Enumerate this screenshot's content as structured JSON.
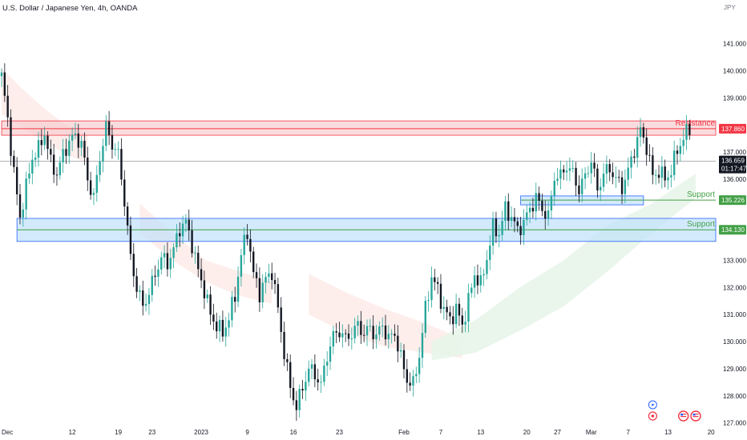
{
  "header": {
    "title": "U.S. Dollar / Japanese Yen, 4h, OANDA",
    "unit": "JPY"
  },
  "colors": {
    "up": "#26a69a",
    "down": "#131722",
    "resistance": "#f23645",
    "support": "#43a047",
    "zone_fill_blue": "#bbdefb",
    "zone_border_blue": "#2962ff",
    "cloud_bull": "#e8f5e9",
    "cloud_bear": "#fdecea",
    "current_price_tag": "#131722"
  },
  "chart_data": {
    "type": "candlestick",
    "y_axis": {
      "range": [
        126.9,
        142.2
      ],
      "ticks": [
        "127.000",
        "128.000",
        "129.000",
        "130.000",
        "131.000",
        "132.000",
        "133.000",
        "136.000",
        "137.000",
        "139.000",
        "140.000",
        "141.000"
      ],
      "side": "right"
    },
    "x_axis": {
      "range_index": [
        0,
        232
      ],
      "ticks": [
        {
          "label": "Dec",
          "i": 0
        },
        {
          "label": "12",
          "i": 23
        },
        {
          "label": "19",
          "i": 38
        },
        {
          "label": "23",
          "i": 49
        },
        {
          "label": "2023",
          "i": 65
        },
        {
          "label": "9",
          "i": 80
        },
        {
          "label": "16",
          "i": 95
        },
        {
          "label": "23",
          "i": 110
        },
        {
          "label": "Feb",
          "i": 131
        },
        {
          "label": "7",
          "i": 143
        },
        {
          "label": "13",
          "i": 156
        },
        {
          "label": "20",
          "i": 171
        },
        {
          "label": "27",
          "i": 181
        },
        {
          "label": "Mar",
          "i": 192
        },
        {
          "label": "7",
          "i": 204
        },
        {
          "label": "13",
          "i": 217
        },
        {
          "label": "20",
          "i": 231
        }
      ]
    },
    "zones": [
      {
        "type": "resistance",
        "label": "Resistance",
        "price_tag": "137.860",
        "top": 138.15,
        "bottom": 137.62,
        "start_index": 0,
        "level": 137.86
      },
      {
        "type": "support",
        "label": "Support",
        "price_tag": "135.226",
        "top": 135.38,
        "bottom": 135.05,
        "start_index": 169,
        "end_index": 209,
        "level": 135.226
      },
      {
        "type": "support",
        "label": "Support",
        "price_tag": "134.130",
        "top": 134.55,
        "bottom": 133.7,
        "start_index": 5,
        "level": 134.13
      }
    ],
    "current_price": {
      "value": 136.659,
      "label": "136.659",
      "countdown": "01:17:47"
    },
    "cloud": [
      {
        "sentiment": "bearish",
        "i0": 0,
        "i1": 28,
        "top": [
          140.1,
          139.3,
          138.6,
          138.0,
          137.6
        ],
        "bottom": [
          138.4,
          137.9,
          137.4,
          136.9,
          136.6
        ]
      },
      {
        "sentiment": "bearish",
        "i0": 45,
        "i1": 88,
        "top": [
          135.1,
          134.0,
          133.0,
          132.6,
          132.2
        ],
        "bottom": [
          134.0,
          133.0,
          132.2,
          131.7,
          131.4
        ]
      },
      {
        "sentiment": "bearish",
        "i0": 100,
        "i1": 150,
        "top": [
          132.5,
          131.8,
          131.2,
          130.7,
          130.1
        ],
        "bottom": [
          131.0,
          130.3,
          129.8,
          129.6,
          129.4
        ]
      },
      {
        "sentiment": "bullish",
        "i0": 140,
        "i1": 226,
        "top": [
          130.0,
          130.8,
          132.0,
          133.0,
          134.3,
          135.1,
          136.2
        ],
        "bottom": [
          129.3,
          129.6,
          130.4,
          131.3,
          132.6,
          134.0,
          135.3
        ]
      }
    ],
    "anchors": [
      [
        0,
        139.8
      ],
      [
        2,
        138.2
      ],
      [
        4,
        136.2
      ],
      [
        6,
        134.6
      ],
      [
        8,
        135.7
      ],
      [
        10,
        136.8
      ],
      [
        12,
        137.1
      ],
      [
        14,
        137.7
      ],
      [
        16,
        136.6
      ],
      [
        18,
        136.2
      ],
      [
        20,
        136.9
      ],
      [
        22,
        137.4
      ],
      [
        24,
        137.6
      ],
      [
        26,
        137.3
      ],
      [
        28,
        136.0
      ],
      [
        30,
        135.3
      ],
      [
        32,
        136.8
      ],
      [
        34,
        137.9
      ],
      [
        36,
        137.3
      ],
      [
        38,
        136.9
      ],
      [
        40,
        135.2
      ],
      [
        42,
        133.1
      ],
      [
        44,
        132.0
      ],
      [
        46,
        131.3
      ],
      [
        48,
        131.8
      ],
      [
        50,
        132.5
      ],
      [
        52,
        133.1
      ],
      [
        54,
        132.9
      ],
      [
        56,
        133.4
      ],
      [
        58,
        134.2
      ],
      [
        60,
        134.4
      ],
      [
        62,
        133.6
      ],
      [
        64,
        132.6
      ],
      [
        66,
        131.9
      ],
      [
        68,
        131.0
      ],
      [
        70,
        130.6
      ],
      [
        72,
        130.3
      ],
      [
        74,
        130.9
      ],
      [
        76,
        131.7
      ],
      [
        78,
        133.2
      ],
      [
        80,
        134.1
      ],
      [
        82,
        132.5
      ],
      [
        84,
        131.8
      ],
      [
        86,
        132.3
      ],
      [
        88,
        132.6
      ],
      [
        90,
        131.2
      ],
      [
        92,
        129.6
      ],
      [
        94,
        128.3
      ],
      [
        96,
        127.6
      ],
      [
        98,
        128.3
      ],
      [
        100,
        129.0
      ],
      [
        102,
        128.8
      ],
      [
        104,
        128.4
      ],
      [
        106,
        129.5
      ],
      [
        108,
        130.2
      ],
      [
        110,
        130.4
      ],
      [
        112,
        130.1
      ],
      [
        114,
        130.3
      ],
      [
        116,
        130.6
      ],
      [
        118,
        130.3
      ],
      [
        120,
        130.5
      ],
      [
        122,
        130.2
      ],
      [
        124,
        130.6
      ],
      [
        126,
        130.1
      ],
      [
        128,
        130.3
      ],
      [
        130,
        129.4
      ],
      [
        132,
        128.6
      ],
      [
        134,
        128.4
      ],
      [
        136,
        129.5
      ],
      [
        138,
        131.2
      ],
      [
        140,
        132.4
      ],
      [
        142,
        131.9
      ],
      [
        144,
        131.2
      ],
      [
        146,
        130.8
      ],
      [
        148,
        131.2
      ],
      [
        150,
        130.6
      ],
      [
        152,
        131.5
      ],
      [
        154,
        132.5
      ],
      [
        156,
        132.1
      ],
      [
        158,
        133.1
      ],
      [
        160,
        134.2
      ],
      [
        162,
        134.0
      ],
      [
        164,
        134.9
      ],
      [
        166,
        134.6
      ],
      [
        168,
        134.1
      ],
      [
        170,
        134.4
      ],
      [
        172,
        134.9
      ],
      [
        174,
        135.3
      ],
      [
        176,
        134.9
      ],
      [
        178,
        134.6
      ],
      [
        180,
        136.1
      ],
      [
        182,
        136.1
      ],
      [
        184,
        136.5
      ],
      [
        186,
        136.2
      ],
      [
        188,
        135.6
      ],
      [
        190,
        136.1
      ],
      [
        192,
        136.7
      ],
      [
        194,
        135.6
      ],
      [
        196,
        136.2
      ],
      [
        198,
        136.4
      ],
      [
        200,
        136.0
      ],
      [
        202,
        135.7
      ],
      [
        204,
        136.3
      ],
      [
        206,
        137.1
      ],
      [
        208,
        137.8
      ],
      [
        210,
        137.2
      ],
      [
        212,
        136.1
      ],
      [
        214,
        136.3
      ],
      [
        216,
        136.0
      ],
      [
        218,
        136.3
      ],
      [
        220,
        137.1
      ],
      [
        222,
        137.5
      ],
      [
        224,
        137.9
      ]
    ],
    "last_index": 224
  },
  "icons": [
    "lightning-icon",
    "event-icon",
    "us-flag-icon"
  ]
}
